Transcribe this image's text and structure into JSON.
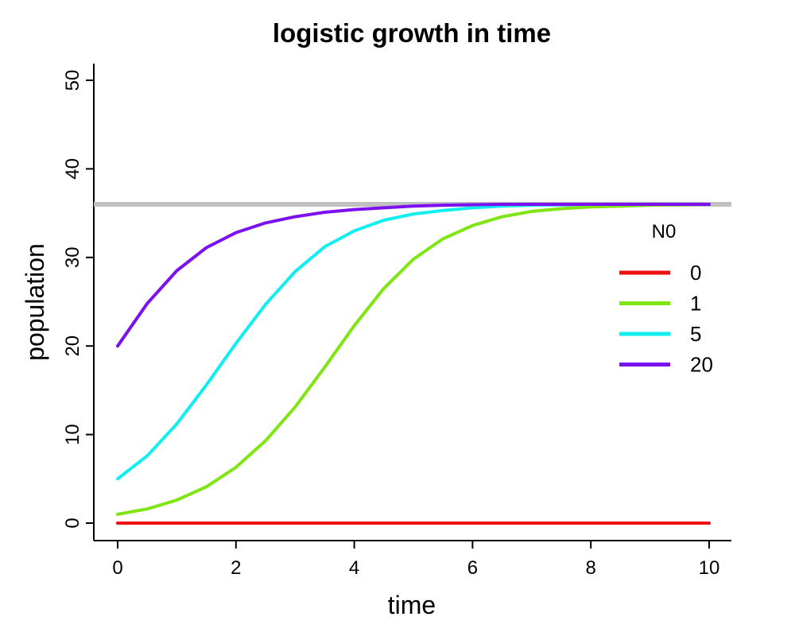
{
  "chart_data": {
    "type": "line",
    "title": "logistic growth in time",
    "xlabel": "time",
    "ylabel": "population",
    "xlim": [
      0,
      10
    ],
    "ylim": [
      0,
      50
    ],
    "xticks": [
      0,
      2,
      4,
      6,
      8,
      10
    ],
    "yticks": [
      0,
      10,
      20,
      30,
      40,
      50
    ],
    "grid": false,
    "legend": {
      "title": "N0",
      "placement": "right"
    },
    "x": [
      0,
      0.5,
      1,
      1.5,
      2,
      2.5,
      3,
      3.5,
      4,
      4.5,
      5,
      5.5,
      6,
      6.5,
      7,
      7.5,
      8,
      8.5,
      9,
      9.5,
      10
    ],
    "series": [
      {
        "name": "0",
        "color": "#ee1111",
        "values": [
          0,
          0,
          0,
          0,
          0,
          0,
          0,
          0,
          0,
          0,
          0,
          0,
          0,
          0,
          0,
          0,
          0,
          0,
          0,
          0,
          0
        ]
      },
      {
        "name": "1",
        "color": "#7fe614",
        "values": [
          1,
          1.6,
          2.6,
          4.1,
          6.3,
          9.3,
          13.1,
          17.6,
          22.3,
          26.5,
          29.8,
          32.1,
          33.6,
          34.6,
          35.2,
          35.5,
          35.7,
          35.8,
          35.9,
          35.95,
          36
        ]
      },
      {
        "name": "5",
        "color": "#11eef0",
        "values": [
          5,
          7.6,
          11.2,
          15.6,
          20.3,
          24.7,
          28.4,
          31.2,
          33.0,
          34.2,
          34.9,
          35.3,
          35.6,
          35.8,
          35.9,
          35.95,
          36,
          36,
          36,
          36,
          36
        ]
      },
      {
        "name": "20",
        "color": "#7a11ee",
        "values": [
          20,
          24.8,
          28.5,
          31.1,
          32.8,
          33.9,
          34.6,
          35.1,
          35.4,
          35.6,
          35.8,
          35.9,
          35.95,
          36,
          36,
          36,
          36,
          36,
          36,
          36,
          36
        ]
      }
    ],
    "reference_lines": [
      {
        "axis": "y",
        "value": 36,
        "color": "#c0c0c0"
      }
    ]
  }
}
